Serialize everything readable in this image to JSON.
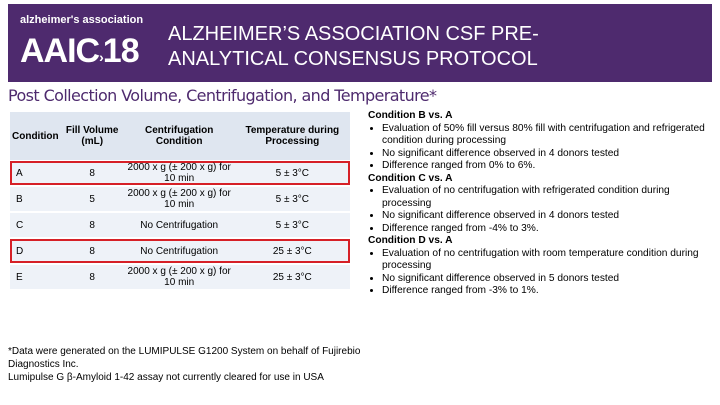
{
  "header": {
    "logo_brand": "alzheimer's association",
    "logo_event": "AAIC",
    "logo_year": "18",
    "title": "ALZHEIMER’S ASSOCIATION CSF PRE-ANALYTICAL CONSENSUS PROTOCOL"
  },
  "subtitle": "Post Collection Volume, Centrifugation, and Temperature*",
  "table": {
    "columns": [
      "Condition",
      "Fill Volume (mL)",
      "Centrifugation Condition",
      "Temperature during Processing"
    ],
    "rows": [
      [
        "A",
        "8",
        "2000 x g (± 200 x g) for 10 min",
        "5 ± 3°C"
      ],
      [
        "B",
        "5",
        "2000 x g (± 200 x g) for 10 min",
        "5 ± 3°C"
      ],
      [
        "C",
        "8",
        "No Centrifugation",
        "5 ± 3°C"
      ],
      [
        "D",
        "8",
        "No Centrifugation",
        "25 ± 3°C"
      ],
      [
        "E",
        "8",
        "2000 x g (± 200 x g) for 10 min",
        "25 ± 3°C"
      ]
    ]
  },
  "notes": [
    {
      "heading": "Condition B vs. A",
      "bullets": [
        "Evaluation of 50% fill versus 80% fill with centrifugation and refrigerated condition during processing",
        "No significant difference observed in 4 donors tested",
        "Difference ranged from 0% to 6%."
      ]
    },
    {
      "heading": "Condition C vs. A",
      "bullets": [
        "Evaluation of no centrifugation with refrigerated condition during processing",
        "No significant difference observed in 4 donors tested",
        "Difference ranged from -4% to 3%."
      ]
    },
    {
      "heading": "Condition D vs. A",
      "bullets": [
        "Evaluation of no centrifugation with room temperature condition during processing",
        "No significant difference observed in 5 donors tested",
        "Difference ranged from -3% to 1%."
      ]
    }
  ],
  "footnote": [
    "*Data were generated on the LUMIPULSE G1200 System on behalf of Fujirebio Diagnostics Inc.",
    "Lumipulse G β-Amyloid 1-42 assay not currently cleared for use in USA"
  ]
}
